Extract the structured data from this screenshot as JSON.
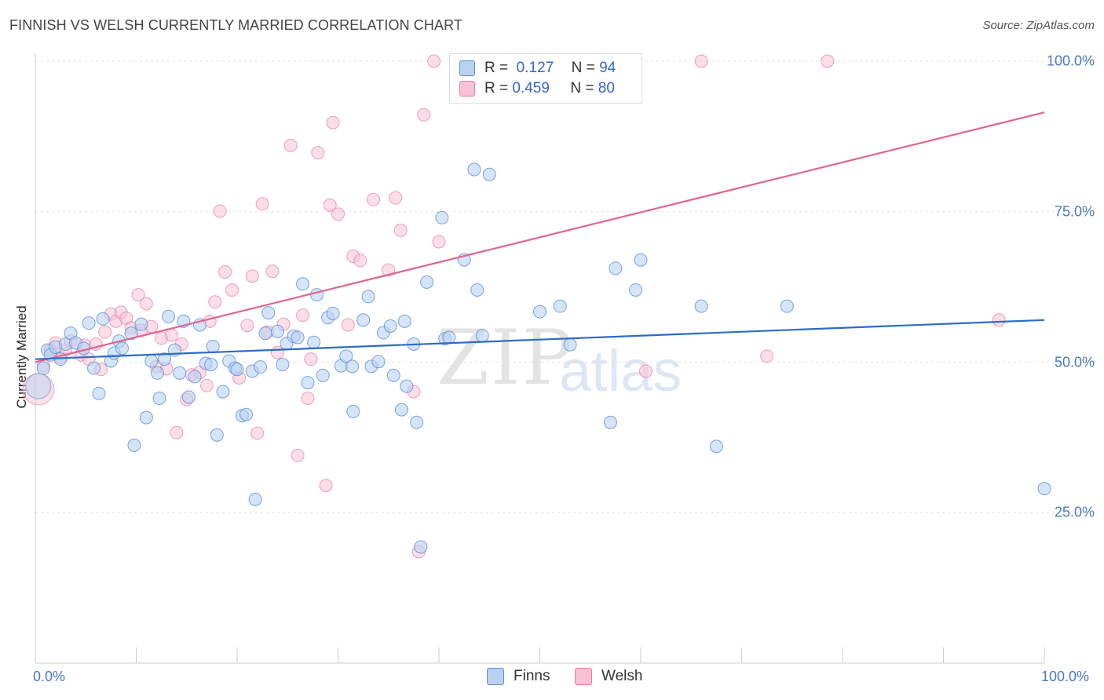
{
  "title": "FINNISH VS WELSH CURRENTLY MARRIED CORRELATION CHART",
  "source": "Source: ZipAtlas.com",
  "watermark": {
    "zip": "ZIP",
    "atlas": "atlas"
  },
  "legend": {
    "finns": {
      "r_label": "R =",
      "r_value": "0.127",
      "n_label": "N =",
      "n_value": "94"
    },
    "welsh": {
      "r_label": "R =",
      "r_value": "0.459",
      "n_label": "N =",
      "n_value": "80"
    }
  },
  "colors": {
    "finns": "#5b8fd6",
    "finns_fill": "#b9d2f2",
    "welsh": "#e87aa0",
    "welsh_fill": "#f7c3d3",
    "finns_line": "#2b6cc4",
    "welsh_line": "#e06592"
  },
  "chart_data": {
    "type": "scatter",
    "title": "FINNISH VS WELSH CURRENTLY MARRIED CORRELATION CHART",
    "xlabel": "",
    "ylabel": "Currently Married",
    "xlim": [
      0,
      100
    ],
    "ylim": [
      0,
      100
    ],
    "x_tick_labels": [
      "0.0%",
      "100.0%"
    ],
    "y_tick_labels": [
      "25.0%",
      "50.0%",
      "75.0%",
      "100.0%"
    ],
    "y_ticks": [
      25,
      50,
      75,
      100
    ],
    "grid": true,
    "legend_position": "top-center",
    "series": [
      {
        "name": "Finns",
        "r": 0.127,
        "n": 94,
        "trend": {
          "x": [
            0,
            100
          ],
          "y": [
            50.5,
            57.0
          ]
        },
        "points": [
          [
            0.8,
            49.0
          ],
          [
            1.2,
            52.0
          ],
          [
            1.5,
            51.2
          ],
          [
            2.0,
            52.5
          ],
          [
            2.5,
            50.5
          ],
          [
            3.0,
            53.0
          ],
          [
            3.5,
            54.8
          ],
          [
            4.0,
            53.2
          ],
          [
            4.8,
            52.3
          ],
          [
            5.3,
            56.5
          ],
          [
            5.8,
            49.0
          ],
          [
            6.3,
            44.8
          ],
          [
            6.7,
            57.2
          ],
          [
            7.5,
            50.2
          ],
          [
            7.8,
            51.5
          ],
          [
            8.3,
            53.5
          ],
          [
            8.6,
            52.3
          ],
          [
            9.5,
            54.8
          ],
          [
            9.8,
            36.2
          ],
          [
            10.5,
            56.3
          ],
          [
            11.0,
            40.8
          ],
          [
            11.5,
            50.2
          ],
          [
            12.1,
            48.2
          ],
          [
            12.3,
            44.0
          ],
          [
            12.8,
            50.5
          ],
          [
            13.2,
            57.6
          ],
          [
            13.8,
            52.0
          ],
          [
            14.3,
            48.2
          ],
          [
            14.7,
            56.8
          ],
          [
            15.2,
            44.2
          ],
          [
            15.8,
            47.6
          ],
          [
            16.3,
            56.2
          ],
          [
            16.9,
            49.8
          ],
          [
            17.4,
            49.6
          ],
          [
            17.6,
            52.6
          ],
          [
            18.0,
            37.9
          ],
          [
            18.6,
            45.1
          ],
          [
            19.2,
            50.2
          ],
          [
            19.8,
            49.0
          ],
          [
            20.0,
            48.8
          ],
          [
            20.5,
            41.1
          ],
          [
            20.9,
            41.3
          ],
          [
            21.5,
            48.5
          ],
          [
            21.8,
            27.2
          ],
          [
            22.3,
            49.2
          ],
          [
            22.8,
            54.8
          ],
          [
            23.1,
            58.2
          ],
          [
            24.0,
            55.1
          ],
          [
            24.5,
            49.6
          ],
          [
            24.9,
            53.1
          ],
          [
            25.6,
            54.3
          ],
          [
            26.0,
            54.1
          ],
          [
            26.5,
            63.0
          ],
          [
            27.0,
            46.6
          ],
          [
            27.6,
            53.3
          ],
          [
            27.9,
            61.2
          ],
          [
            28.5,
            47.8
          ],
          [
            29.0,
            57.4
          ],
          [
            29.5,
            58.1
          ],
          [
            30.3,
            49.4
          ],
          [
            30.8,
            51.0
          ],
          [
            31.4,
            49.3
          ],
          [
            31.5,
            41.8
          ],
          [
            32.5,
            57.0
          ],
          [
            33.0,
            60.9
          ],
          [
            33.3,
            49.3
          ],
          [
            34.0,
            50.1
          ],
          [
            34.5,
            54.9
          ],
          [
            35.2,
            56.0
          ],
          [
            35.5,
            47.8
          ],
          [
            36.3,
            42.1
          ],
          [
            36.6,
            56.8
          ],
          [
            36.8,
            46.0
          ],
          [
            37.5,
            53.0
          ],
          [
            37.8,
            40.0
          ],
          [
            38.2,
            19.3
          ],
          [
            38.8,
            63.3
          ],
          [
            40.3,
            74.0
          ],
          [
            40.6,
            53.9
          ],
          [
            41.0,
            54.1
          ],
          [
            42.5,
            67.0
          ],
          [
            43.5,
            82.0
          ],
          [
            43.8,
            62.0
          ],
          [
            44.3,
            54.4
          ],
          [
            45.0,
            81.2
          ],
          [
            50.0,
            58.4
          ],
          [
            52.0,
            59.3
          ],
          [
            53.0,
            52.9
          ],
          [
            57.0,
            40.0
          ],
          [
            57.5,
            65.6
          ],
          [
            59.5,
            62.0
          ],
          [
            60.0,
            67.0
          ],
          [
            66.0,
            59.3
          ],
          [
            67.5,
            36.0
          ],
          [
            74.5,
            59.3
          ],
          [
            100.0,
            29.0
          ]
        ],
        "point_sizes_note": "one larger point near origin",
        "big_point": [
          0.3,
          46.0
        ]
      },
      {
        "name": "Welsh",
        "r": 0.459,
        "n": 80,
        "trend": {
          "x": [
            0,
            100
          ],
          "y": [
            50.0,
            91.5
          ]
        },
        "points": [
          [
            0.8,
            49.5
          ],
          [
            1.5,
            52.0
          ],
          [
            2.0,
            53.2
          ],
          [
            2.5,
            50.8
          ],
          [
            3.0,
            52.0
          ],
          [
            3.5,
            53.5
          ],
          [
            4.5,
            51.2
          ],
          [
            4.9,
            52.8
          ],
          [
            5.3,
            50.5
          ],
          [
            6.0,
            53.0
          ],
          [
            6.5,
            48.8
          ],
          [
            6.9,
            55.0
          ],
          [
            7.5,
            58.0
          ],
          [
            8.0,
            56.8
          ],
          [
            8.5,
            58.3
          ],
          [
            9.0,
            57.3
          ],
          [
            9.5,
            55.7
          ],
          [
            10.2,
            61.2
          ],
          [
            10.5,
            55.3
          ],
          [
            11.0,
            59.7
          ],
          [
            11.5,
            55.9
          ],
          [
            12.0,
            49.3
          ],
          [
            12.5,
            54.0
          ],
          [
            13.0,
            48.9
          ],
          [
            13.5,
            54.5
          ],
          [
            14.0,
            38.3
          ],
          [
            14.5,
            53.0
          ],
          [
            15.0,
            43.8
          ],
          [
            15.5,
            47.9
          ],
          [
            16.3,
            48.3
          ],
          [
            17.0,
            46.1
          ],
          [
            17.3,
            56.8
          ],
          [
            17.8,
            60.0
          ],
          [
            18.3,
            75.1
          ],
          [
            18.8,
            65.0
          ],
          [
            19.5,
            62.0
          ],
          [
            20.2,
            47.4
          ],
          [
            21.0,
            56.1
          ],
          [
            21.5,
            64.3
          ],
          [
            22.0,
            38.2
          ],
          [
            22.5,
            76.3
          ],
          [
            23.0,
            55.0
          ],
          [
            23.5,
            65.1
          ],
          [
            24.0,
            51.6
          ],
          [
            24.6,
            56.3
          ],
          [
            25.3,
            86.0
          ],
          [
            26.0,
            34.5
          ],
          [
            26.5,
            57.8
          ],
          [
            27.0,
            44.0
          ],
          [
            27.3,
            50.5
          ],
          [
            28.0,
            84.8
          ],
          [
            28.8,
            29.5
          ],
          [
            29.2,
            76.1
          ],
          [
            29.5,
            89.8
          ],
          [
            30.0,
            74.6
          ],
          [
            31.0,
            56.2
          ],
          [
            31.5,
            67.6
          ],
          [
            32.2,
            66.9
          ],
          [
            33.5,
            77.0
          ],
          [
            35.0,
            65.3
          ],
          [
            35.7,
            77.3
          ],
          [
            36.2,
            71.9
          ],
          [
            37.5,
            45.1
          ],
          [
            38.0,
            18.5
          ],
          [
            38.5,
            91.1
          ],
          [
            39.5,
            100.0
          ],
          [
            40.0,
            70.0
          ],
          [
            43.5,
            100.0
          ],
          [
            44.5,
            100.0
          ],
          [
            46.5,
            94.5
          ],
          [
            48.0,
            100.0
          ],
          [
            55.0,
            100.0
          ],
          [
            60.5,
            48.5
          ],
          [
            66.0,
            100.0
          ],
          [
            72.5,
            51.0
          ],
          [
            78.5,
            100.0
          ],
          [
            95.5,
            57.0
          ]
        ],
        "big_point": [
          0.3,
          45.5
        ]
      }
    ]
  },
  "bottom_legend": {
    "finns": "Finns",
    "welsh": "Welsh"
  }
}
